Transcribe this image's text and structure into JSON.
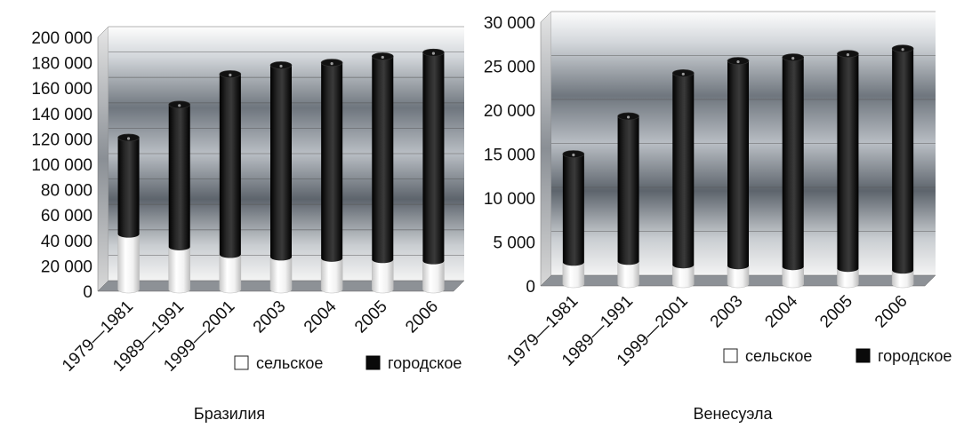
{
  "chart_data": [
    {
      "type": "bar",
      "stacked": true,
      "title": "Бразилия",
      "categories": [
        "1979—1981",
        "1989—1991",
        "1999—2001",
        "2003",
        "2004",
        "2005",
        "2006"
      ],
      "series": [
        {
          "name": "сельское",
          "values": [
            45000,
            35000,
            29000,
            27000,
            26000,
            25000,
            24000
          ]
        },
        {
          "name": "городское",
          "values": [
            76000,
            112000,
            142000,
            151000,
            154000,
            160000,
            164000
          ]
        }
      ],
      "y_ticks": [
        "0",
        "20 000",
        "40 000",
        "60 000",
        "80 000",
        "100 000",
        "120 000",
        "140 000",
        "160 000",
        "180 000",
        "200 000"
      ],
      "ylim": [
        0,
        200000
      ],
      "legend_position": "bottom-right",
      "colors": {
        "сельское": "#ffffff",
        "городское": "#0a0a0a"
      }
    },
    {
      "type": "bar",
      "stacked": true,
      "title": "Венесуэла",
      "categories": [
        "1979—1981",
        "1989—1991",
        "1999—2001",
        "2003",
        "2004",
        "2005",
        "2006"
      ],
      "series": [
        {
          "name": "сельское",
          "values": [
            2700,
            2800,
            2400,
            2300,
            2200,
            2000,
            1800
          ]
        },
        {
          "name": "городское",
          "values": [
            12300,
            16500,
            21800,
            23300,
            23800,
            24400,
            25200
          ]
        }
      ],
      "y_ticks": [
        "0",
        "5 000",
        "10 000",
        "15 000",
        "20 000",
        "25 000",
        "30 000"
      ],
      "ylim": [
        0,
        30000
      ],
      "legend_position": "bottom-right",
      "colors": {
        "сельское": "#ffffff",
        "городское": "#0a0a0a"
      }
    }
  ]
}
